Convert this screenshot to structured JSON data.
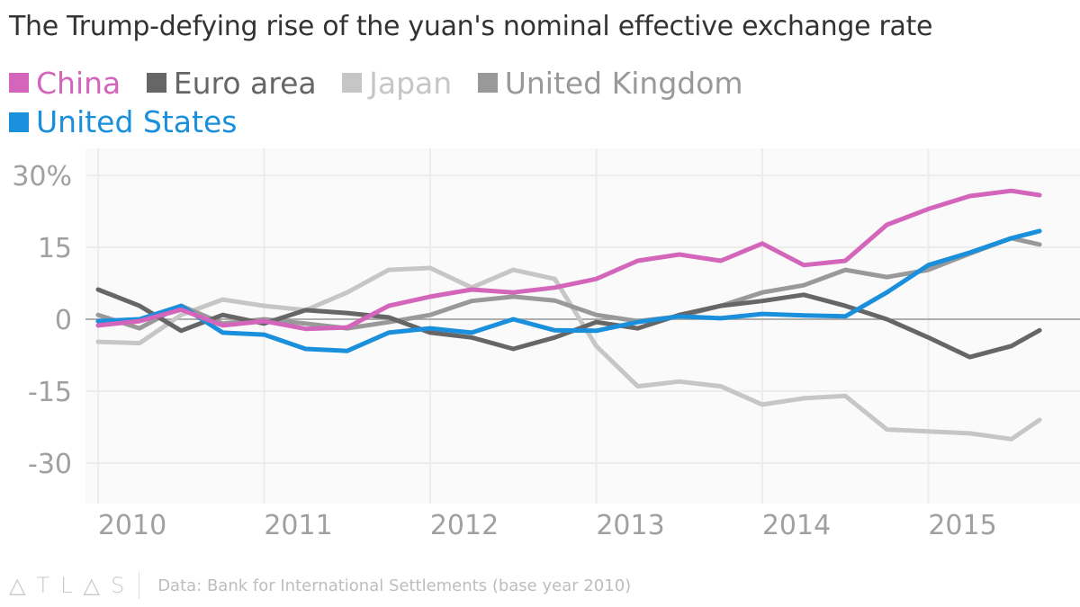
{
  "chart_data": {
    "type": "line",
    "title": "The Trump-defying rise of the yuan's nominal effective exchange rate",
    "xlabel": "",
    "ylabel": "",
    "xlim": [
      2010,
      2015.67
    ],
    "ylim": [
      -37,
      33
    ],
    "y_ticks": [
      30,
      15,
      0,
      -15,
      -30
    ],
    "y_tick_labels": [
      "30%",
      "15",
      "0",
      "-15",
      "-30"
    ],
    "x_ticks": [
      2010,
      2011,
      2012,
      2013,
      2014,
      2015
    ],
    "x_tick_labels": [
      "2010",
      "2011",
      "2012",
      "2013",
      "2014",
      "2015"
    ],
    "grid": true,
    "legend_placement": "top-left",
    "x": [
      2010.0,
      2010.25,
      2010.5,
      2010.75,
      2011.0,
      2011.25,
      2011.5,
      2011.75,
      2012.0,
      2012.25,
      2012.5,
      2012.75,
      2013.0,
      2013.25,
      2013.5,
      2013.75,
      2014.0,
      2014.25,
      2014.5,
      2014.75,
      2015.0,
      2015.25,
      2015.5,
      2015.67
    ],
    "series": [
      {
        "name": "Japan",
        "color": "#c6c6c6",
        "values": [
          -4.7,
          -5.0,
          0.9,
          4.1,
          2.8,
          1.9,
          5.6,
          10.3,
          10.7,
          6.6,
          10.3,
          8.4,
          -5.6,
          -14.0,
          -13.0,
          -14.0,
          -17.8,
          -16.5,
          -16.0,
          -23.0,
          -23.4,
          -23.8,
          -25.0,
          -21.0
        ]
      },
      {
        "name": "United Kingdom",
        "color": "#999999",
        "values": [
          0.9,
          -1.9,
          2.8,
          -0.9,
          0.0,
          -0.9,
          -1.9,
          -0.6,
          0.9,
          3.8,
          4.7,
          3.9,
          0.9,
          -0.4,
          0.6,
          2.8,
          5.6,
          7.1,
          10.3,
          8.8,
          10.3,
          13.7,
          16.9,
          15.6
        ]
      },
      {
        "name": "Euro area",
        "color": "#666666",
        "values": [
          6.2,
          2.8,
          -2.4,
          0.9,
          -0.9,
          1.9,
          1.3,
          0.4,
          -2.8,
          -3.8,
          -6.2,
          -3.8,
          -0.6,
          -1.9,
          0.9,
          2.8,
          3.8,
          5.1,
          2.8,
          0.0,
          -3.8,
          -7.9,
          -5.6,
          -2.3
        ]
      },
      {
        "name": "United States",
        "color": "#1a8fdc",
        "values": [
          -0.4,
          0.0,
          2.8,
          -2.8,
          -3.2,
          -6.2,
          -6.6,
          -2.8,
          -1.9,
          -2.8,
          0.0,
          -2.3,
          -2.4,
          -0.6,
          0.6,
          0.2,
          1.1,
          0.8,
          0.6,
          5.6,
          11.3,
          13.9,
          16.9,
          18.4
        ]
      },
      {
        "name": "China",
        "color": "#d365ba",
        "values": [
          -1.3,
          -0.4,
          2.0,
          -1.3,
          -0.4,
          -2.0,
          -1.7,
          2.8,
          4.7,
          6.2,
          5.6,
          6.6,
          8.4,
          12.2,
          13.5,
          12.2,
          15.8,
          11.3,
          12.2,
          19.7,
          23.0,
          25.7,
          26.8,
          25.9
        ]
      }
    ]
  },
  "legend": [
    {
      "label": "China",
      "color": "#d365ba"
    },
    {
      "label": "Euro area",
      "color": "#666666"
    },
    {
      "label": "Japan",
      "color": "#c6c6c6"
    },
    {
      "label": "United Kingdom",
      "color": "#999999"
    },
    {
      "label": "United States",
      "color": "#1a8fdc"
    }
  ],
  "footer": {
    "logo": "ATLAS",
    "source": "Data: Bank for International Settlements (base year 2010)"
  }
}
